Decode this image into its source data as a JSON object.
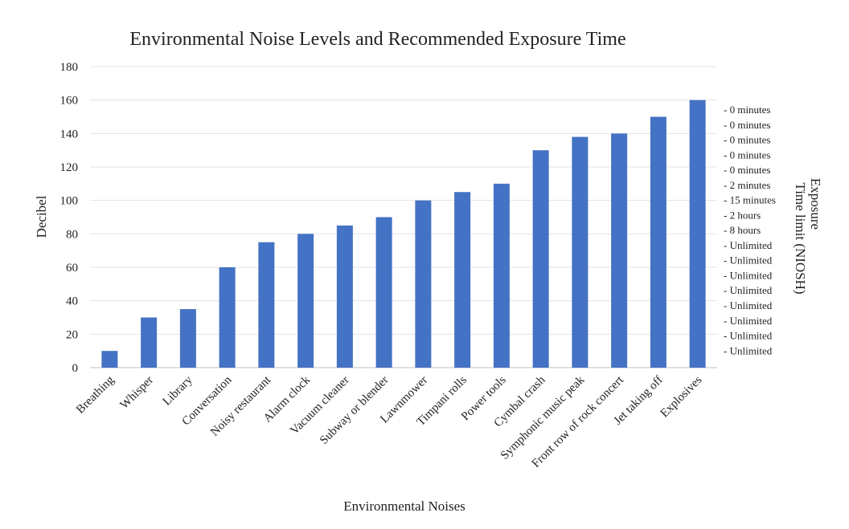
{
  "chart_data": {
    "type": "bar",
    "title": "Environmental Noise Levels and Recommended Exposure Time",
    "xlabel": "Environmental Noises",
    "ylabel": "Decibel",
    "ylim": [
      0,
      180
    ],
    "yticks": [
      "0",
      "20",
      "40",
      "60",
      "80",
      "100",
      "120",
      "140",
      "160",
      "180"
    ],
    "grid": true,
    "categories": [
      "Breathing",
      "Whisper",
      "Library",
      "Conversation",
      "Noisy restaurant",
      "Alarm clock",
      "Vacuum cleaner",
      "Subway or blender",
      "Lawnmower",
      "Timpani rolls",
      "Power tools",
      "Cymbal crash",
      "Symphonic music peak",
      "Front row of rock concert",
      "Jet taking off",
      "Explosives"
    ],
    "values": [
      10,
      30,
      35,
      60,
      75,
      80,
      85,
      90,
      100,
      105,
      110,
      130,
      138,
      140,
      150,
      160
    ],
    "bar_color": "#4472C4",
    "secondary_axis": {
      "title_line1": "Exposure",
      "title_line2": "Time limit  (NIOSH)",
      "labels": [
        "- 0 minutes",
        "- 0 minutes",
        "- 0 minutes",
        "- 0 minutes",
        "- 0 minutes",
        "- 2 minutes",
        "- 15 minutes",
        "- 2 hours",
        "- 8 hours",
        "- Unlimited",
        "- Unlimited",
        "- Unlimited",
        "- Unlimited",
        "- Unlimited",
        "- Unlimited",
        "- Unlimited",
        "- Unlimited"
      ]
    }
  }
}
